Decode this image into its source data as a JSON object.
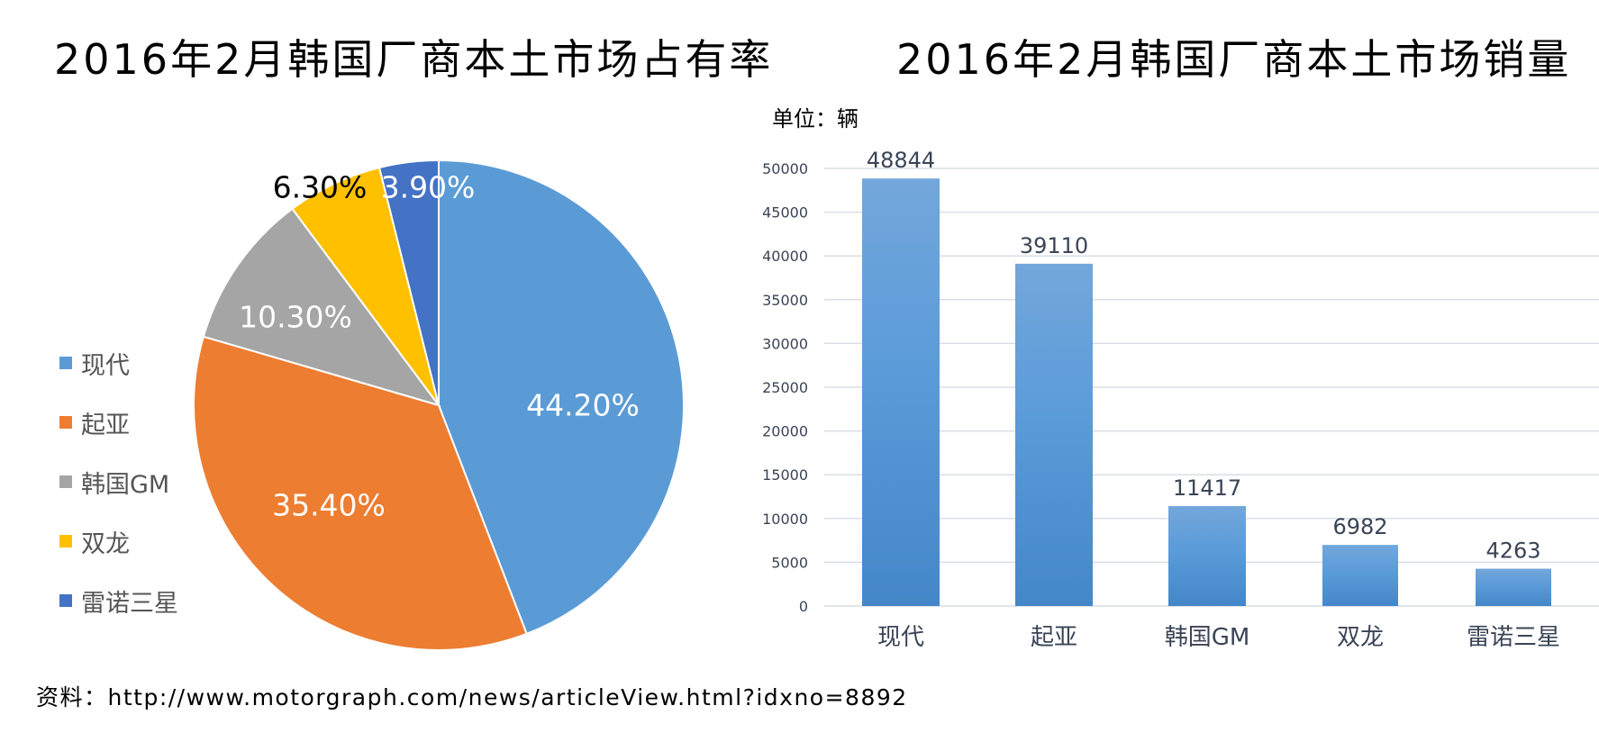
{
  "pie": {
    "title": "2016年2月韩国厂商本土市场占有率",
    "legend": [
      {
        "label": "现代",
        "color": "#5B9BD5"
      },
      {
        "label": "起亚",
        "color": "#ED7D31"
      },
      {
        "label": "韩国GM",
        "color": "#A5A5A5"
      },
      {
        "label": "双龙",
        "color": "#FFC000"
      },
      {
        "label": "雷诺三星",
        "color": "#4472C4"
      }
    ]
  },
  "bar": {
    "title": "2016年2月韩国厂商本土市场销量",
    "unit": "单位：辆",
    "bar_color_top": "#73A7DB",
    "bar_color_bottom": "#4487C8"
  },
  "source": "资料：http://www.motorgraph.com/news/articleView.html?idxno=8892",
  "chart_data": [
    {
      "type": "pie",
      "title": "2016年2月韩国厂商本土市场占有率",
      "categories": [
        "现代",
        "起亚",
        "韩国GM",
        "双龙",
        "雷诺三星"
      ],
      "values": [
        44.2,
        35.4,
        10.3,
        6.3,
        3.9
      ],
      "labels": [
        "44.20%",
        "35.40%",
        "10.30%",
        "6.30%",
        "3.90%"
      ],
      "colors": [
        "#5B9BD5",
        "#ED7D31",
        "#A5A5A5",
        "#FFC000",
        "#4472C4"
      ],
      "legend_position": "left"
    },
    {
      "type": "bar",
      "title": "2016年2月韩国厂商本土市场销量",
      "subtitle": "单位：辆",
      "categories": [
        "现代",
        "起亚",
        "韩国GM",
        "双龙",
        "雷诺三星"
      ],
      "values": [
        48844,
        39110,
        11417,
        6982,
        4263
      ],
      "xlabel": "",
      "ylabel": "",
      "ylim": [
        0,
        50000
      ],
      "yticks": [
        0,
        5000,
        10000,
        15000,
        20000,
        25000,
        30000,
        35000,
        40000,
        45000,
        50000
      ],
      "grid": true
    }
  ]
}
